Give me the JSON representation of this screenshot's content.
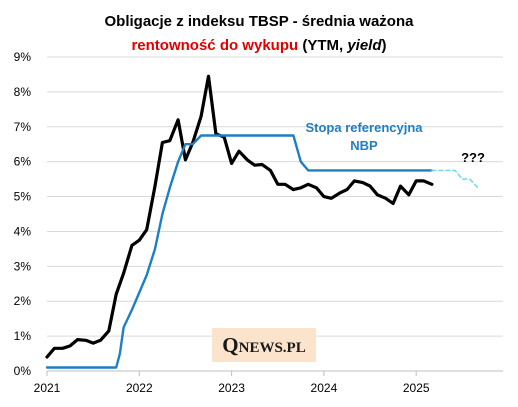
{
  "chart_data": {
    "type": "line",
    "title_line1": "Obligacje z indeksu TBSP - średnia ważona",
    "title_line2_red": "rentowność do wykupu",
    "title_line2_rest_prefix": " (YTM, ",
    "title_line2_rest_italic": "yield",
    "title_line2_rest_suffix": ")",
    "x_ticks": [
      "2021",
      "2022",
      "2023",
      "2024",
      "2025"
    ],
    "y_ticks": [
      "0%",
      "1%",
      "2%",
      "3%",
      "4%",
      "5%",
      "6%",
      "7%",
      "8%",
      "9%"
    ],
    "xlim": [
      2021.0,
      2026.0
    ],
    "ylim": [
      0,
      9
    ],
    "colors": {
      "ytm": "#000000",
      "nbp": "#1f7fc4",
      "nbp_projection": "#7fd6f0",
      "title_red": "#e00000"
    },
    "series": [
      {
        "key": "ytm",
        "values": [
          [
            2021.0,
            0.4
          ],
          [
            2021.08,
            0.65
          ],
          [
            2021.17,
            0.65
          ],
          [
            2021.25,
            0.72
          ],
          [
            2021.33,
            0.9
          ],
          [
            2021.42,
            0.88
          ],
          [
            2021.5,
            0.8
          ],
          [
            2021.58,
            0.88
          ],
          [
            2021.67,
            1.15
          ],
          [
            2021.75,
            2.2
          ],
          [
            2021.83,
            2.8
          ],
          [
            2021.92,
            3.6
          ],
          [
            2022.0,
            3.75
          ],
          [
            2022.08,
            4.05
          ],
          [
            2022.17,
            5.3
          ],
          [
            2022.25,
            6.55
          ],
          [
            2022.33,
            6.6
          ],
          [
            2022.42,
            7.2
          ],
          [
            2022.5,
            6.05
          ],
          [
            2022.58,
            6.55
          ],
          [
            2022.67,
            7.3
          ],
          [
            2022.75,
            8.45
          ],
          [
            2022.83,
            6.8
          ],
          [
            2022.92,
            6.7
          ],
          [
            2023.0,
            5.95
          ],
          [
            2023.08,
            6.3
          ],
          [
            2023.17,
            6.05
          ],
          [
            2023.25,
            5.9
          ],
          [
            2023.33,
            5.92
          ],
          [
            2023.42,
            5.75
          ],
          [
            2023.5,
            5.35
          ],
          [
            2023.58,
            5.35
          ],
          [
            2023.67,
            5.2
          ],
          [
            2023.75,
            5.25
          ],
          [
            2023.83,
            5.35
          ],
          [
            2023.92,
            5.25
          ],
          [
            2024.0,
            5.0
          ],
          [
            2024.08,
            4.95
          ],
          [
            2024.17,
            5.1
          ],
          [
            2024.25,
            5.2
          ],
          [
            2024.33,
            5.45
          ],
          [
            2024.42,
            5.4
          ],
          [
            2024.5,
            5.3
          ],
          [
            2024.58,
            5.05
          ],
          [
            2024.67,
            4.95
          ],
          [
            2024.75,
            4.8
          ],
          [
            2024.83,
            5.3
          ],
          [
            2024.92,
            5.05
          ],
          [
            2025.0,
            5.45
          ],
          [
            2025.08,
            5.45
          ],
          [
            2025.17,
            5.35
          ]
        ]
      },
      {
        "key": "nbp",
        "name": "Stopa referencyjna NBP",
        "values": [
          [
            2021.0,
            0.1
          ],
          [
            2021.75,
            0.1
          ],
          [
            2021.79,
            0.5
          ],
          [
            2021.83,
            1.25
          ],
          [
            2021.92,
            1.75
          ],
          [
            2022.0,
            2.25
          ],
          [
            2022.08,
            2.75
          ],
          [
            2022.17,
            3.5
          ],
          [
            2022.25,
            4.5
          ],
          [
            2022.33,
            5.25
          ],
          [
            2022.42,
            6.0
          ],
          [
            2022.5,
            6.5
          ],
          [
            2022.58,
            6.5
          ],
          [
            2022.67,
            6.75
          ],
          [
            2023.67,
            6.75
          ],
          [
            2023.75,
            6.0
          ],
          [
            2023.83,
            5.75
          ],
          [
            2025.17,
            5.75
          ]
        ]
      },
      {
        "key": "nbp_projection",
        "values": [
          [
            2025.17,
            5.75
          ],
          [
            2025.42,
            5.75
          ],
          [
            2025.5,
            5.5
          ],
          [
            2025.58,
            5.5
          ],
          [
            2025.67,
            5.25
          ]
        ]
      }
    ],
    "annotations": {
      "nbp_label_line1": "Stopa referencyjna",
      "nbp_label_line2": "NBP",
      "question": "???"
    }
  },
  "watermark": {
    "q": "Q",
    "rest": "NEWS.PL"
  }
}
